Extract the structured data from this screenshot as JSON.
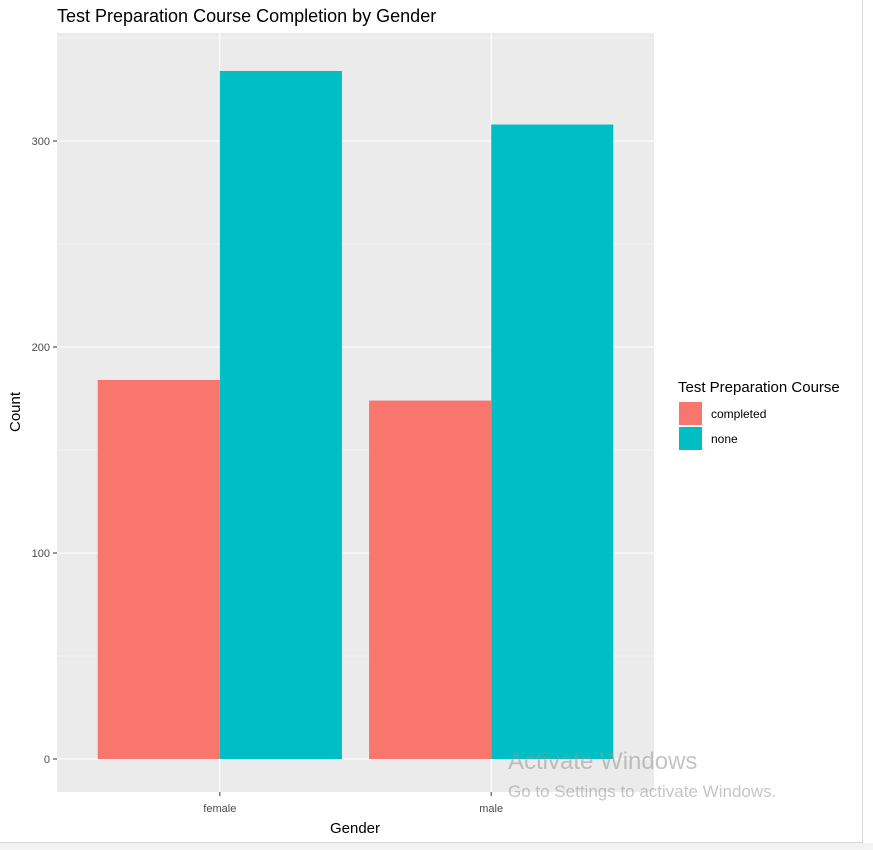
{
  "chart_data": {
    "type": "bar",
    "title": "Test Preparation Course Completion by Gender",
    "xlabel": "Gender",
    "ylabel": "Count",
    "categories": [
      "female",
      "male"
    ],
    "series": [
      {
        "name": "completed",
        "values": [
          184,
          174
        ],
        "color": "#F8766D"
      },
      {
        "name": "none",
        "values": [
          334,
          308
        ],
        "color": "#00BFC4"
      }
    ],
    "ylim": [
      0,
      350
    ],
    "yticks": [
      0,
      100,
      200,
      300
    ],
    "grid": true,
    "legend": {
      "title": "Test Preparation Course",
      "position": "right"
    },
    "panel_color": "#EBEBEB"
  },
  "watermark": {
    "title": "Activate Windows",
    "subtitle": "Go to Settings to activate Windows."
  }
}
